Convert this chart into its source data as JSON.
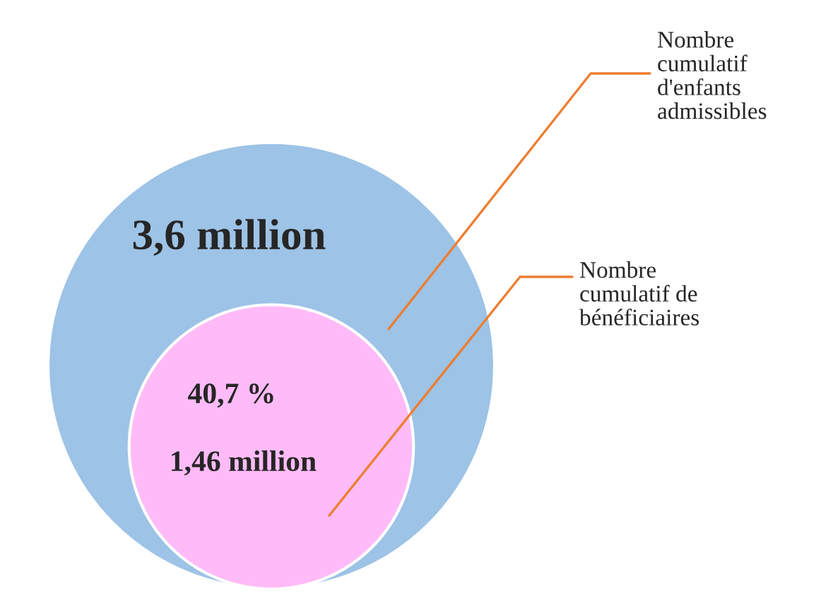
{
  "chart_data": {
    "type": "other",
    "categories": [
      null,
      null
    ],
    "values": [
      3.6,
      1.46
    ],
    "value_labels": [
      "3,6 million",
      "1,46 million"
    ],
    "colors": [
      "#9dc3e6",
      "#ffbbf7"
    ],
    "annotations": [
      "Nombre\ncumulatif\nd'enfants\nadmissibles",
      "Nombre\ncumulatif de\nbénéficiaires",
      "40,7 %"
    ]
  }
}
